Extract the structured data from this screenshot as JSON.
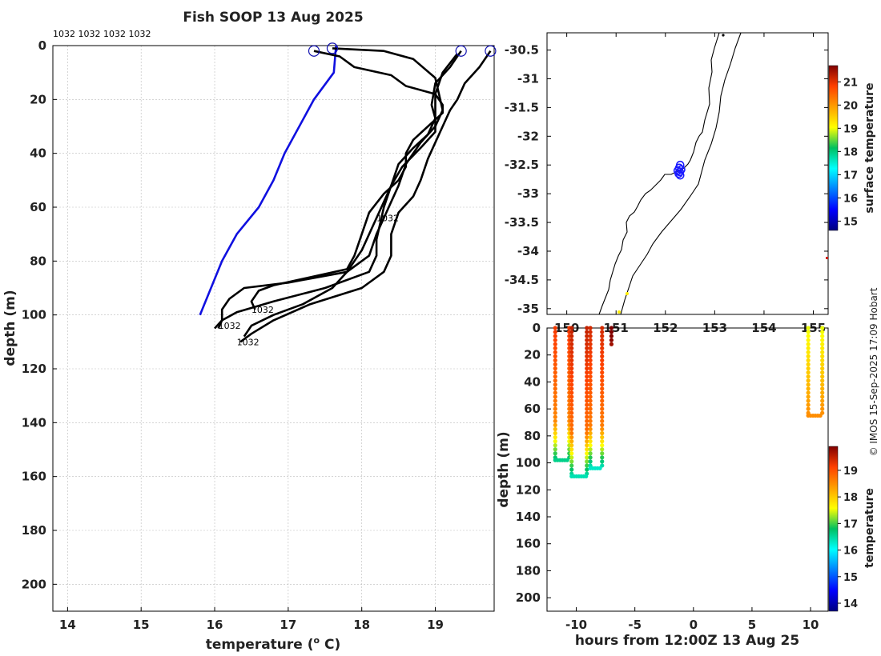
{
  "credit": "© IMOS 15-Sep-2025 17:09 Hobart",
  "chart_data": [
    {
      "id": "profiles",
      "type": "line",
      "title": "Fish SOOP 13 Aug 2025",
      "xlabel": "temperature (",
      "xlabel_sup": "o",
      "xlabel_end": " C)",
      "ylabel": "depth (m)",
      "xlim": [
        13.8,
        19.8
      ],
      "ylim": [
        210,
        0
      ],
      "xticks": [
        14,
        15,
        16,
        17,
        18,
        19
      ],
      "yticks": [
        0,
        20,
        40,
        60,
        80,
        100,
        120,
        140,
        160,
        180,
        200
      ],
      "grid": true,
      "top_labels": "1032 1032 1032 1032",
      "profile_label": "1032",
      "series": [
        {
          "name": "blue",
          "color": "#1010e0",
          "points": [
            [
              17.65,
              0
            ],
            [
              17.62,
              10
            ],
            [
              17.35,
              20
            ],
            [
              16.95,
              40
            ],
            [
              16.8,
              50
            ],
            [
              16.6,
              60
            ],
            [
              16.3,
              70
            ],
            [
              16.1,
              80
            ],
            [
              15.8,
              100
            ]
          ],
          "marker": [
            17.6,
            1
          ],
          "tag": null
        },
        {
          "name": "p1",
          "color": "#000000",
          "points": [
            [
              17.35,
              2
            ],
            [
              17.7,
              4
            ],
            [
              17.9,
              8
            ],
            [
              18.4,
              11
            ],
            [
              18.6,
              15
            ],
            [
              19.0,
              18
            ],
            [
              19.1,
              22
            ],
            [
              19.1,
              25
            ],
            [
              18.9,
              30
            ],
            [
              18.7,
              35
            ],
            [
              18.6,
              40
            ],
            [
              18.6,
              45
            ],
            [
              18.5,
              50
            ],
            [
              18.3,
              55
            ],
            [
              18.1,
              62
            ],
            [
              18.0,
              70
            ],
            [
              17.9,
              78
            ],
            [
              17.8,
              83
            ],
            [
              17.3,
              86
            ],
            [
              16.8,
              89
            ],
            [
              16.6,
              91
            ],
            [
              16.5,
              95
            ],
            [
              16.55,
              98
            ]
          ],
          "marker": [
            17.35,
            2
          ],
          "tag": [
            16.5,
            98
          ]
        },
        {
          "name": "p2",
          "color": "#000000",
          "points": [
            [
              19.35,
              2
            ],
            [
              19.2,
              8
            ],
            [
              19.0,
              14
            ],
            [
              18.95,
              22
            ],
            [
              19.0,
              27
            ],
            [
              18.9,
              33
            ],
            [
              18.7,
              38
            ],
            [
              18.5,
              44
            ],
            [
              18.4,
              52
            ],
            [
              18.3,
              60
            ],
            [
              18.25,
              66
            ],
            [
              18.2,
              72
            ],
            [
              18.2,
              78
            ],
            [
              18.1,
              84
            ],
            [
              17.5,
              90
            ],
            [
              16.8,
              95
            ],
            [
              16.3,
              99
            ],
            [
              16.1,
              102
            ],
            [
              16.0,
              105
            ]
          ],
          "marker": [
            19.35,
            2
          ],
          "tag": [
            16.05,
            104
          ]
        },
        {
          "name": "p3",
          "color": "#000000",
          "points": [
            [
              19.75,
              2
            ],
            [
              19.6,
              8
            ],
            [
              19.4,
              14
            ],
            [
              19.3,
              20
            ],
            [
              19.2,
              24
            ],
            [
              19.1,
              30
            ],
            [
              19.0,
              36
            ],
            [
              18.9,
              42
            ],
            [
              18.8,
              50
            ],
            [
              18.7,
              56
            ],
            [
              18.5,
              62
            ],
            [
              18.4,
              70
            ],
            [
              18.4,
              78
            ],
            [
              18.3,
              84
            ],
            [
              18.0,
              90
            ],
            [
              17.3,
              96
            ],
            [
              16.8,
              102
            ],
            [
              16.5,
              107
            ],
            [
              16.35,
              110
            ]
          ],
          "marker": [
            19.75,
            2
          ],
          "tag": [
            16.3,
            110
          ]
        },
        {
          "name": "p4",
          "color": "#000000",
          "points": [
            [
              17.6,
              1
            ],
            [
              18.3,
              2
            ],
            [
              18.7,
              5
            ],
            [
              19.0,
              12
            ],
            [
              19.05,
              18
            ],
            [
              19.1,
              24
            ],
            [
              19.0,
              30
            ],
            [
              18.8,
              36
            ],
            [
              18.6,
              44
            ],
            [
              18.5,
              52
            ],
            [
              18.4,
              58
            ],
            [
              18.3,
              64
            ],
            [
              18.2,
              70
            ],
            [
              18.1,
              78
            ],
            [
              17.8,
              84
            ],
            [
              17.0,
              88
            ],
            [
              16.4,
              90
            ],
            [
              16.2,
              94
            ],
            [
              16.1,
              98
            ],
            [
              16.1,
              102
            ],
            [
              16.05,
              105
            ]
          ],
          "marker": null,
          "tag": null
        },
        {
          "name": "p5",
          "color": "#000000",
          "points": [
            [
              19.3,
              3
            ],
            [
              19.1,
              10
            ],
            [
              19.0,
              18
            ],
            [
              19.0,
              25
            ],
            [
              19.0,
              32
            ],
            [
              18.8,
              38
            ],
            [
              18.55,
              45
            ],
            [
              18.4,
              52
            ],
            [
              18.3,
              58
            ],
            [
              18.2,
              64
            ],
            [
              18.1,
              70
            ],
            [
              18.0,
              76
            ],
            [
              17.8,
              84
            ],
            [
              17.6,
              90
            ],
            [
              17.2,
              96
            ],
            [
              16.8,
              100
            ],
            [
              16.5,
              104
            ],
            [
              16.4,
              108
            ]
          ],
          "marker": null,
          "tag": [
            18.2,
            64
          ]
        }
      ]
    },
    {
      "id": "map",
      "type": "scatter",
      "xlim": [
        149.6,
        155.3
      ],
      "ylim": [
        -35.1,
        -30.2
      ],
      "xticks": [
        150,
        151,
        152,
        153,
        154,
        155
      ],
      "yticks": [
        -30.5,
        -31,
        -31.5,
        -32,
        -32.5,
        -33,
        -33.5,
        -34,
        -34.5,
        -35
      ],
      "colorbar": {
        "label": "surface temperature",
        "ticks": [
          15,
          16,
          17,
          18,
          19,
          20,
          21
        ],
        "range": [
          14.6,
          21.7
        ]
      },
      "track_points": [
        [
          152.3,
          -32.5
        ],
        [
          152.28,
          -32.55
        ],
        [
          152.25,
          -32.6
        ],
        [
          152.27,
          -32.65
        ],
        [
          152.3,
          -32.68
        ],
        [
          152.32,
          -32.58
        ],
        [
          152.29,
          -32.62
        ]
      ]
    },
    {
      "id": "depth_time",
      "type": "scatter",
      "xlabel": "hours from 12:00Z 13 Aug 25",
      "ylabel": "depth (m)",
      "xlim": [
        -12.5,
        11.5
      ],
      "ylim": [
        210,
        0
      ],
      "xticks": [
        -10,
        -5,
        0,
        5,
        10
      ],
      "yticks": [
        0,
        20,
        40,
        60,
        80,
        100,
        120,
        140,
        160,
        180,
        200
      ],
      "colorbar": {
        "label": "temperature",
        "ticks": [
          14,
          15,
          16,
          17,
          18,
          19
        ],
        "range": [
          13.7,
          19.9
        ]
      },
      "dives": [
        {
          "t0": -11.8,
          "t1": -10.6,
          "max_depth": 98,
          "surface_temp": 19.2,
          "bottom_temp": 16.6
        },
        {
          "t0": -10.4,
          "t1": -9.1,
          "max_depth": 110,
          "surface_temp": 19.5,
          "bottom_temp": 16.4
        },
        {
          "t0": -8.8,
          "t1": -7.8,
          "max_depth": 104,
          "surface_temp": 19.4,
          "bottom_temp": 16.3
        },
        {
          "t0": -7.0,
          "t1": -7.0,
          "max_depth": 12,
          "surface_temp": 19.9,
          "bottom_temp": 19.7
        },
        {
          "t0": 9.8,
          "t1": 11.0,
          "max_depth": 65,
          "surface_temp": 17.5,
          "bottom_temp": 18.5
        }
      ]
    }
  ]
}
